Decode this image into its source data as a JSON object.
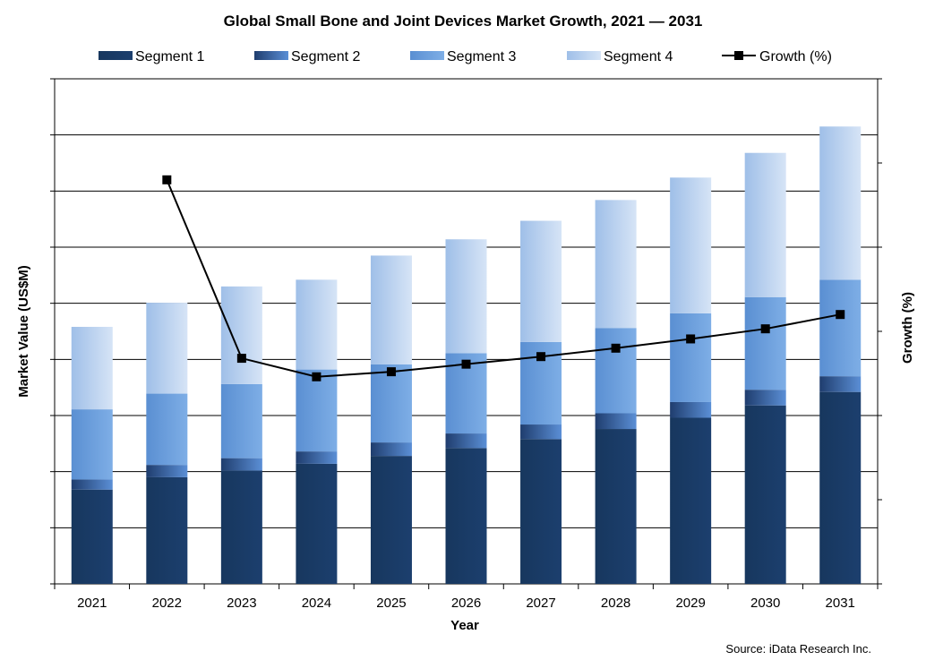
{
  "chart_data": {
    "type": "bar",
    "stacked": true,
    "title": "Global Small Bone and Joint Devices Market Growth, 2021 — 2031",
    "xlabel": "Year",
    "ylabel": "Market Value (US$M)",
    "y2label": "Growth (%)",
    "source": "Source: iData Research Inc.",
    "categories": [
      "2021",
      "2022",
      "2023",
      "2024",
      "2025",
      "2026",
      "2027",
      "2028",
      "2029",
      "2030",
      "2031"
    ],
    "ylim": [
      0,
      9
    ],
    "y2lim": [
      0,
      6
    ],
    "grid": true,
    "legend_position": "top",
    "series": [
      {
        "name": "Segment 1",
        "color": "#17375e",
        "values": [
          1.68,
          1.9,
          2.02,
          2.14,
          2.28,
          2.42,
          2.58,
          2.76,
          2.96,
          3.18,
          3.42
        ]
      },
      {
        "name": "Segment 2",
        "color": "#2f5597",
        "values": [
          0.18,
          0.22,
          0.22,
          0.22,
          0.24,
          0.26,
          0.26,
          0.28,
          0.28,
          0.28,
          0.28
        ]
      },
      {
        "name": "Segment 3",
        "color": "#6b9fdc",
        "values": [
          1.25,
          1.27,
          1.32,
          1.46,
          1.39,
          1.43,
          1.47,
          1.52,
          1.58,
          1.65,
          1.72
        ]
      },
      {
        "name": "Segment 4",
        "color": "#c6d9f1",
        "values": [
          1.47,
          1.62,
          1.74,
          1.6,
          1.94,
          2.03,
          2.16,
          2.28,
          2.42,
          2.57,
          2.73
        ]
      }
    ],
    "line_series": {
      "name": "Growth (%)",
      "axis": "secondary",
      "color": "#000000",
      "values": [
        null,
        4.8,
        2.68,
        2.46,
        2.52,
        2.61,
        2.7,
        2.8,
        2.91,
        3.03,
        3.2
      ]
    }
  }
}
